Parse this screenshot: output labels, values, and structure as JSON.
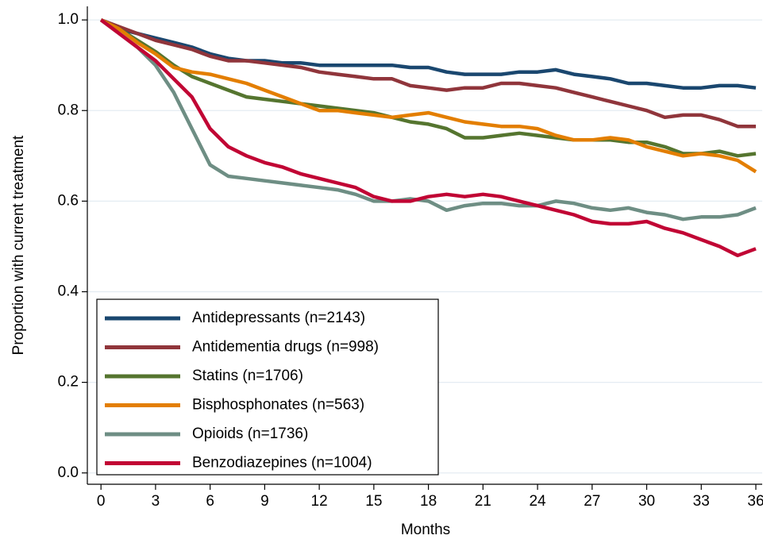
{
  "chart_data": {
    "type": "line",
    "xlabel": "Months",
    "ylabel": "Proportion with current treatment",
    "x": [
      0,
      1,
      2,
      3,
      4,
      5,
      6,
      7,
      8,
      9,
      10,
      11,
      12,
      13,
      14,
      15,
      16,
      17,
      18,
      19,
      20,
      21,
      22,
      23,
      24,
      25,
      26,
      27,
      28,
      29,
      30,
      31,
      32,
      33,
      34,
      35,
      36
    ],
    "xlim": [
      -0.75,
      36.35
    ],
    "ylim": [
      -0.025,
      1.03
    ],
    "xticks": [
      0,
      3,
      6,
      9,
      12,
      15,
      18,
      21,
      24,
      27,
      30,
      33,
      36
    ],
    "yticks": [
      {
        "value": 0,
        "label": "0.0"
      },
      0.2,
      0.4,
      0.6,
      0.8,
      {
        "value": 1,
        "label": "1.0"
      }
    ],
    "grid": true,
    "legend": "lower left",
    "series": [
      {
        "name": "Antidepressants (n=2143)",
        "color": "#1a476f",
        "values": [
          1.0,
          0.98,
          0.97,
          0.96,
          0.95,
          0.94,
          0.925,
          0.915,
          0.91,
          0.91,
          0.905,
          0.905,
          0.9,
          0.9,
          0.9,
          0.9,
          0.9,
          0.895,
          0.895,
          0.885,
          0.88,
          0.88,
          0.88,
          0.885,
          0.885,
          0.89,
          0.88,
          0.875,
          0.87,
          0.86,
          0.86,
          0.855,
          0.85,
          0.85,
          0.855,
          0.855,
          0.85
        ]
      },
      {
        "name": "Antidementia drugs (n=998)",
        "color": "#90353b",
        "values": [
          1.0,
          0.985,
          0.97,
          0.955,
          0.945,
          0.935,
          0.92,
          0.91,
          0.91,
          0.905,
          0.9,
          0.895,
          0.885,
          0.88,
          0.875,
          0.87,
          0.87,
          0.855,
          0.85,
          0.845,
          0.85,
          0.85,
          0.86,
          0.86,
          0.855,
          0.85,
          0.84,
          0.83,
          0.82,
          0.81,
          0.8,
          0.785,
          0.79,
          0.79,
          0.78,
          0.765,
          0.765
        ]
      },
      {
        "name": "Statins (n=1706)",
        "color": "#55752f",
        "values": [
          1.0,
          0.98,
          0.955,
          0.93,
          0.9,
          0.875,
          0.86,
          0.845,
          0.83,
          0.825,
          0.82,
          0.815,
          0.81,
          0.805,
          0.8,
          0.795,
          0.785,
          0.775,
          0.77,
          0.76,
          0.74,
          0.74,
          0.745,
          0.75,
          0.745,
          0.74,
          0.735,
          0.735,
          0.735,
          0.73,
          0.73,
          0.72,
          0.705,
          0.705,
          0.71,
          0.7,
          0.705
        ]
      },
      {
        "name": "Bisphosphonates (n=563)",
        "color": "#e37e00",
        "values": [
          1.0,
          0.98,
          0.95,
          0.925,
          0.895,
          0.885,
          0.88,
          0.87,
          0.86,
          0.845,
          0.83,
          0.815,
          0.8,
          0.8,
          0.795,
          0.79,
          0.785,
          0.79,
          0.795,
          0.785,
          0.775,
          0.77,
          0.765,
          0.765,
          0.76,
          0.745,
          0.735,
          0.735,
          0.74,
          0.735,
          0.72,
          0.71,
          0.7,
          0.705,
          0.7,
          0.69,
          0.665
        ]
      },
      {
        "name": "Opioids (n=1736)",
        "color": "#6e8e84",
        "values": [
          1.0,
          0.97,
          0.94,
          0.9,
          0.84,
          0.76,
          0.68,
          0.655,
          0.65,
          0.645,
          0.64,
          0.635,
          0.63,
          0.625,
          0.615,
          0.6,
          0.6,
          0.605,
          0.6,
          0.58,
          0.59,
          0.595,
          0.595,
          0.59,
          0.59,
          0.6,
          0.595,
          0.585,
          0.58,
          0.585,
          0.575,
          0.57,
          0.56,
          0.565,
          0.565,
          0.57,
          0.585
        ]
      },
      {
        "name": "Benzodiazepines (n=1004)",
        "color": "#c10534",
        "values": [
          1.0,
          0.97,
          0.94,
          0.91,
          0.87,
          0.83,
          0.76,
          0.72,
          0.7,
          0.685,
          0.675,
          0.66,
          0.65,
          0.64,
          0.63,
          0.61,
          0.6,
          0.6,
          0.61,
          0.615,
          0.61,
          0.615,
          0.61,
          0.6,
          0.59,
          0.58,
          0.57,
          0.555,
          0.55,
          0.55,
          0.555,
          0.54,
          0.53,
          0.515,
          0.5,
          0.48,
          0.495
        ]
      }
    ]
  }
}
